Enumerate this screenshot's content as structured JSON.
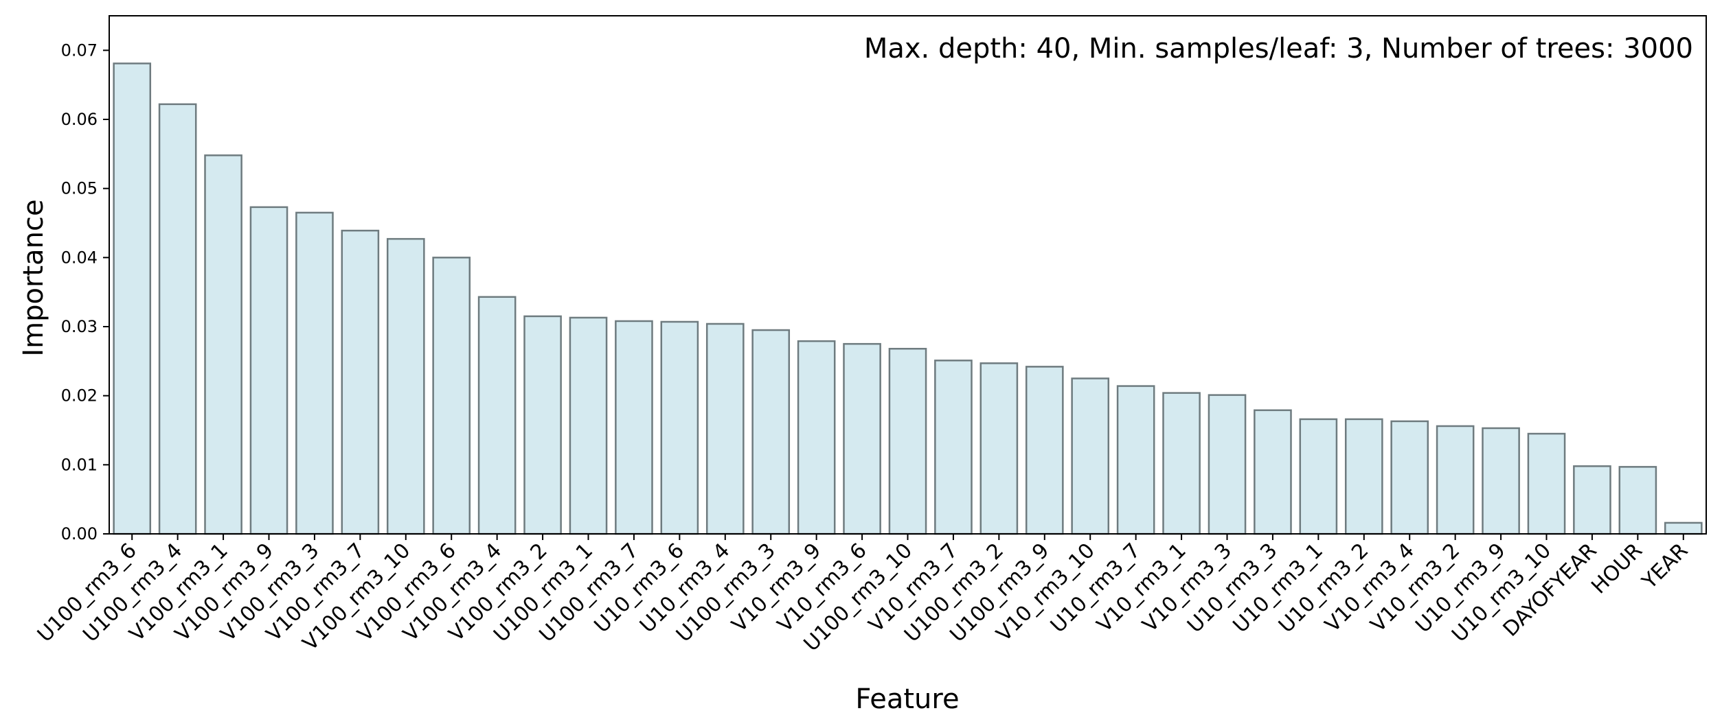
{
  "chart_data": {
    "type": "bar",
    "annotation": "Max. depth: 40, Min. samples/leaf: 3, Number of trees: 3000",
    "xlabel": "Feature",
    "ylabel": "Importance",
    "ylim": [
      0,
      0.075
    ],
    "yticks": [
      0.0,
      0.01,
      0.02,
      0.03,
      0.04,
      0.05,
      0.06,
      0.07
    ],
    "ytick_labels": [
      "0.00",
      "0.01",
      "0.02",
      "0.03",
      "0.04",
      "0.05",
      "0.06",
      "0.07"
    ],
    "grid": false,
    "bar_color": "#d5eaf0",
    "bar_edge_color": "#6e7b7f",
    "categories": [
      "U100_rm3_6",
      "U100_rm3_4",
      "V100_rm3_1",
      "V100_rm3_9",
      "V100_rm3_3",
      "V100_rm3_7",
      "V100_rm3_10",
      "V100_rm3_6",
      "V100_rm3_4",
      "V100_rm3_2",
      "U100_rm3_1",
      "U100_rm3_7",
      "U10_rm3_6",
      "U10_rm3_4",
      "U100_rm3_3",
      "V10_rm3_9",
      "V10_rm3_6",
      "U100_rm3_10",
      "V10_rm3_7",
      "U100_rm3_2",
      "U100_rm3_9",
      "V10_rm3_10",
      "U10_rm3_7",
      "V10_rm3_1",
      "V10_rm3_3",
      "U10_rm3_3",
      "U10_rm3_1",
      "U10_rm3_2",
      "V10_rm3_4",
      "V10_rm3_2",
      "U10_rm3_9",
      "U10_rm3_10",
      "DAYOFYEAR",
      "HOUR",
      "YEAR"
    ],
    "values": [
      0.0681,
      0.0622,
      0.0548,
      0.0473,
      0.0465,
      0.0439,
      0.0427,
      0.04,
      0.0343,
      0.0315,
      0.0313,
      0.0308,
      0.0307,
      0.0304,
      0.0295,
      0.0279,
      0.0275,
      0.0268,
      0.0251,
      0.0247,
      0.0242,
      0.0225,
      0.0214,
      0.0204,
      0.0201,
      0.0179,
      0.0166,
      0.0166,
      0.0163,
      0.0156,
      0.0153,
      0.0145,
      0.0098,
      0.0097,
      0.0016
    ]
  }
}
